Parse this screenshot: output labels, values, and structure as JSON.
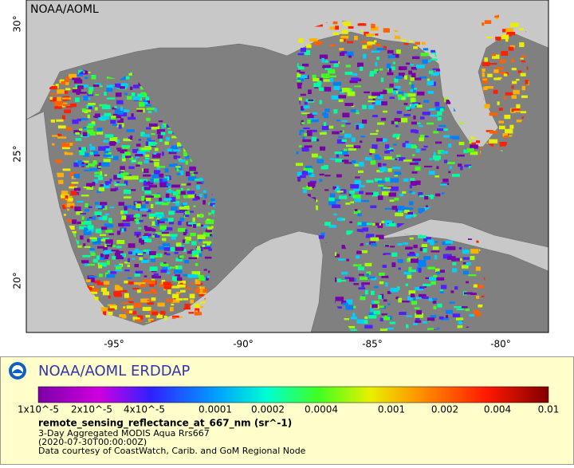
{
  "map": {
    "credit": "NOAA/AOML",
    "lat_ticks": [
      "30°",
      "25°",
      "20°"
    ],
    "lon_ticks": [
      "-95°",
      "-90°",
      "-85°",
      "-80°"
    ]
  },
  "legend": {
    "title": "NOAA/AOML ERDDAP",
    "colorbar_ticks": [
      "1x10^-5",
      "2x10^-5",
      "4x10^-5",
      "0.0001",
      "0.0002",
      "0.0004",
      "0.001",
      "0.002",
      "0.004",
      "0.01"
    ],
    "variable": "remote_sensing_reflectance_at_667_nm (sr^-1)",
    "lines": [
      "3-Day Aggregated MODIS Aqua Rrs667",
      "(2020-07-30T00:00:00Z)",
      "Data courtesy of CoastWatch, Carib. and GoM Regional Node"
    ]
  }
}
